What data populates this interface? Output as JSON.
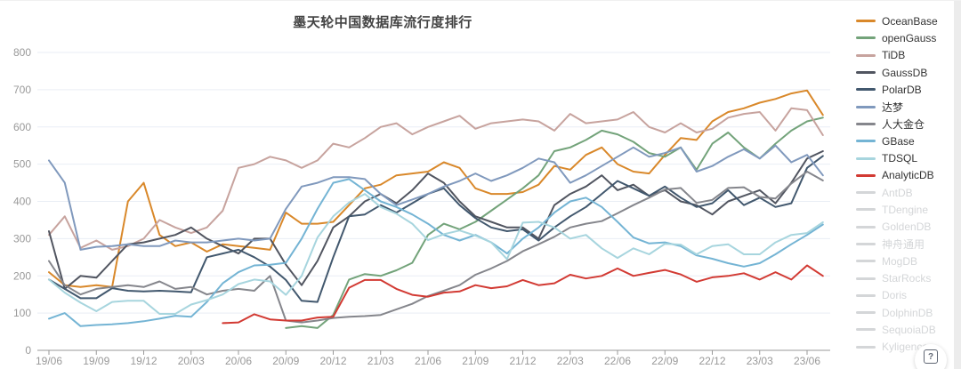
{
  "title": "墨天轮中国数据库流行度排行",
  "help_button": {
    "label": "?"
  },
  "chart_data": {
    "type": "line",
    "title": "墨天轮中国数据库流行度排行",
    "xlabel": "",
    "ylabel": "",
    "ylim": [
      0,
      800
    ],
    "y_tick_interval": 100,
    "y_tick_labels": [
      "0",
      "100",
      "200",
      "300",
      "400",
      "500",
      "600",
      "700",
      "800"
    ],
    "grid": true,
    "legend_position": "right",
    "x": [
      "19/06",
      "19/07",
      "19/08",
      "19/09",
      "19/10",
      "19/11",
      "19/12",
      "20/01",
      "20/02",
      "20/03",
      "20/04",
      "20/05",
      "20/06",
      "20/07",
      "20/08",
      "20/09",
      "20/10",
      "20/11",
      "20/12",
      "21/01",
      "21/02",
      "21/03",
      "21/04",
      "21/05",
      "21/06",
      "21/07",
      "21/08",
      "21/09",
      "21/10",
      "21/11",
      "21/12",
      "22/01",
      "22/02",
      "22/03",
      "22/04",
      "22/05",
      "22/06",
      "22/07",
      "22/08",
      "22/09",
      "22/10",
      "22/11",
      "22/12",
      "23/01",
      "23/02",
      "23/03",
      "23/04",
      "23/05",
      "23/06",
      "23/07"
    ],
    "x_tick_labels": [
      "19/06",
      "19/09",
      "19/12",
      "20/03",
      "20/06",
      "20/09",
      "20/12",
      "21/03",
      "21/06",
      "21/09",
      "21/12",
      "22/03",
      "22/06",
      "22/09",
      "22/12",
      "23/03",
      "23/06"
    ],
    "series": [
      {
        "name": "OceanBase",
        "color": "#d9882a",
        "values": [
          210,
          175,
          170,
          175,
          170,
          400,
          450,
          310,
          280,
          290,
          265,
          285,
          280,
          275,
          270,
          370,
          340,
          340,
          345,
          390,
          435,
          445,
          470,
          475,
          480,
          505,
          490,
          435,
          420,
          420,
          425,
          445,
          495,
          485,
          525,
          545,
          500,
          480,
          475,
          525,
          570,
          565,
          615,
          640,
          650,
          665,
          675,
          690,
          698,
          632
        ]
      },
      {
        "name": "openGauss",
        "color": "#73a37a",
        "values": [
          null,
          null,
          null,
          null,
          null,
          null,
          null,
          null,
          null,
          null,
          null,
          null,
          null,
          null,
          null,
          60,
          65,
          60,
          95,
          190,
          205,
          200,
          215,
          235,
          310,
          340,
          325,
          345,
          375,
          405,
          435,
          470,
          535,
          545,
          565,
          590,
          580,
          560,
          530,
          520,
          545,
          485,
          555,
          585,
          545,
          515,
          555,
          590,
          615,
          625
        ]
      },
      {
        "name": "TiDB",
        "color": "#c7a39e",
        "values": [
          310,
          360,
          275,
          295,
          270,
          280,
          300,
          350,
          330,
          315,
          330,
          375,
          490,
          500,
          520,
          510,
          490,
          510,
          555,
          545,
          570,
          600,
          610,
          580,
          600,
          615,
          630,
          595,
          610,
          615,
          620,
          615,
          590,
          635,
          610,
          615,
          620,
          640,
          600,
          585,
          610,
          585,
          595,
          625,
          635,
          640,
          590,
          650,
          645,
          578
        ]
      },
      {
        "name": "GaussDB",
        "color": "#515560",
        "values": [
          320,
          165,
          200,
          195,
          240,
          285,
          290,
          300,
          310,
          330,
          300,
          280,
          260,
          300,
          300,
          230,
          175,
          240,
          330,
          360,
          400,
          420,
          395,
          430,
          475,
          450,
          400,
          360,
          345,
          330,
          330,
          300,
          390,
          420,
          440,
          470,
          430,
          445,
          415,
          430,
          400,
          390,
          365,
          400,
          415,
          430,
          395,
          450,
          515,
          535
        ]
      },
      {
        "name": "PolarDB",
        "color": "#42586e",
        "values": [
          190,
          165,
          140,
          140,
          167,
          160,
          158,
          160,
          158,
          156,
          250,
          260,
          270,
          250,
          225,
          189,
          133,
          130,
          250,
          360,
          365,
          390,
          370,
          395,
          420,
          435,
          390,
          355,
          330,
          320,
          325,
          295,
          330,
          360,
          385,
          420,
          455,
          435,
          415,
          440,
          410,
          385,
          395,
          430,
          390,
          410,
          385,
          395,
          490,
          522
        ]
      },
      {
        "name": "达梦",
        "color": "#8099bd",
        "values": [
          510,
          450,
          270,
          278,
          280,
          285,
          280,
          280,
          295,
          290,
          290,
          295,
          300,
          295,
          300,
          380,
          440,
          450,
          465,
          465,
          460,
          420,
          390,
          405,
          420,
          440,
          455,
          475,
          455,
          470,
          490,
          515,
          505,
          450,
          470,
          495,
          520,
          545,
          520,
          530,
          545,
          480,
          495,
          520,
          540,
          515,
          550,
          505,
          525,
          470
        ]
      },
      {
        "name": "人大金仓",
        "color": "#85868c",
        "values": [
          240,
          175,
          150,
          165,
          170,
          175,
          170,
          185,
          165,
          170,
          150,
          160,
          165,
          160,
          200,
          80,
          75,
          80,
          87,
          90,
          92,
          95,
          110,
          125,
          146,
          160,
          175,
          203,
          220,
          240,
          266,
          285,
          305,
          330,
          340,
          347,
          368,
          390,
          410,
          432,
          436,
          396,
          404,
          436,
          438,
          412,
          408,
          448,
          480,
          456
        ]
      },
      {
        "name": "GBase",
        "color": "#74b4d4",
        "values": [
          85,
          100,
          65,
          68,
          70,
          73,
          78,
          85,
          93,
          90,
          130,
          180,
          210,
          228,
          230,
          235,
          300,
          380,
          450,
          460,
          430,
          400,
          385,
          365,
          340,
          310,
          295,
          310,
          290,
          260,
          300,
          330,
          370,
          400,
          410,
          385,
          345,
          303,
          287,
          290,
          280,
          255,
          246,
          234,
          225,
          234,
          258,
          285,
          310,
          338
        ]
      },
      {
        "name": "TDSQL",
        "color": "#a7d5de",
        "values": [
          190,
          155,
          128,
          105,
          130,
          133,
          133,
          98,
          98,
          123,
          135,
          150,
          178,
          190,
          185,
          149,
          200,
          303,
          360,
          397,
          420,
          385,
          367,
          340,
          296,
          312,
          322,
          308,
          290,
          245,
          343,
          345,
          330,
          300,
          310,
          274,
          248,
          274,
          258,
          286,
          284,
          258,
          280,
          285,
          258,
          258,
          290,
          310,
          315,
          344
        ]
      },
      {
        "name": "AnalyticDB",
        "color": "#d23a33",
        "values": [
          null,
          null,
          null,
          null,
          null,
          null,
          null,
          null,
          null,
          null,
          null,
          73,
          75,
          97,
          83,
          80,
          80,
          88,
          90,
          168,
          189,
          189,
          165,
          149,
          144,
          155,
          158,
          175,
          167,
          172,
          189,
          175,
          180,
          203,
          193,
          200,
          220,
          200,
          208,
          216,
          204,
          184,
          196,
          200,
          207,
          190,
          210,
          190,
          228,
          200
        ]
      }
    ],
    "disabled_series": [
      {
        "name": "AntDB",
        "color": "#d4d6d8"
      },
      {
        "name": "TDengine",
        "color": "#d4d6d8"
      },
      {
        "name": "GoldenDB",
        "color": "#d4d6d8"
      },
      {
        "name": "神舟通用",
        "color": "#d4d6d8"
      },
      {
        "name": "MogDB",
        "color": "#d4d6d8"
      },
      {
        "name": "StarRocks",
        "color": "#d4d6d8"
      },
      {
        "name": "Doris",
        "color": "#d4d6d8"
      },
      {
        "name": "DolphinDB",
        "color": "#d4d6d8"
      },
      {
        "name": "SequoiaDB",
        "color": "#d4d6d8"
      },
      {
        "name": "Kyligence",
        "color": "#d4d6d8"
      }
    ],
    "axis_colors": {
      "label": "#999999",
      "axis_line": "#999999",
      "gridline": "#e9eef5"
    }
  }
}
